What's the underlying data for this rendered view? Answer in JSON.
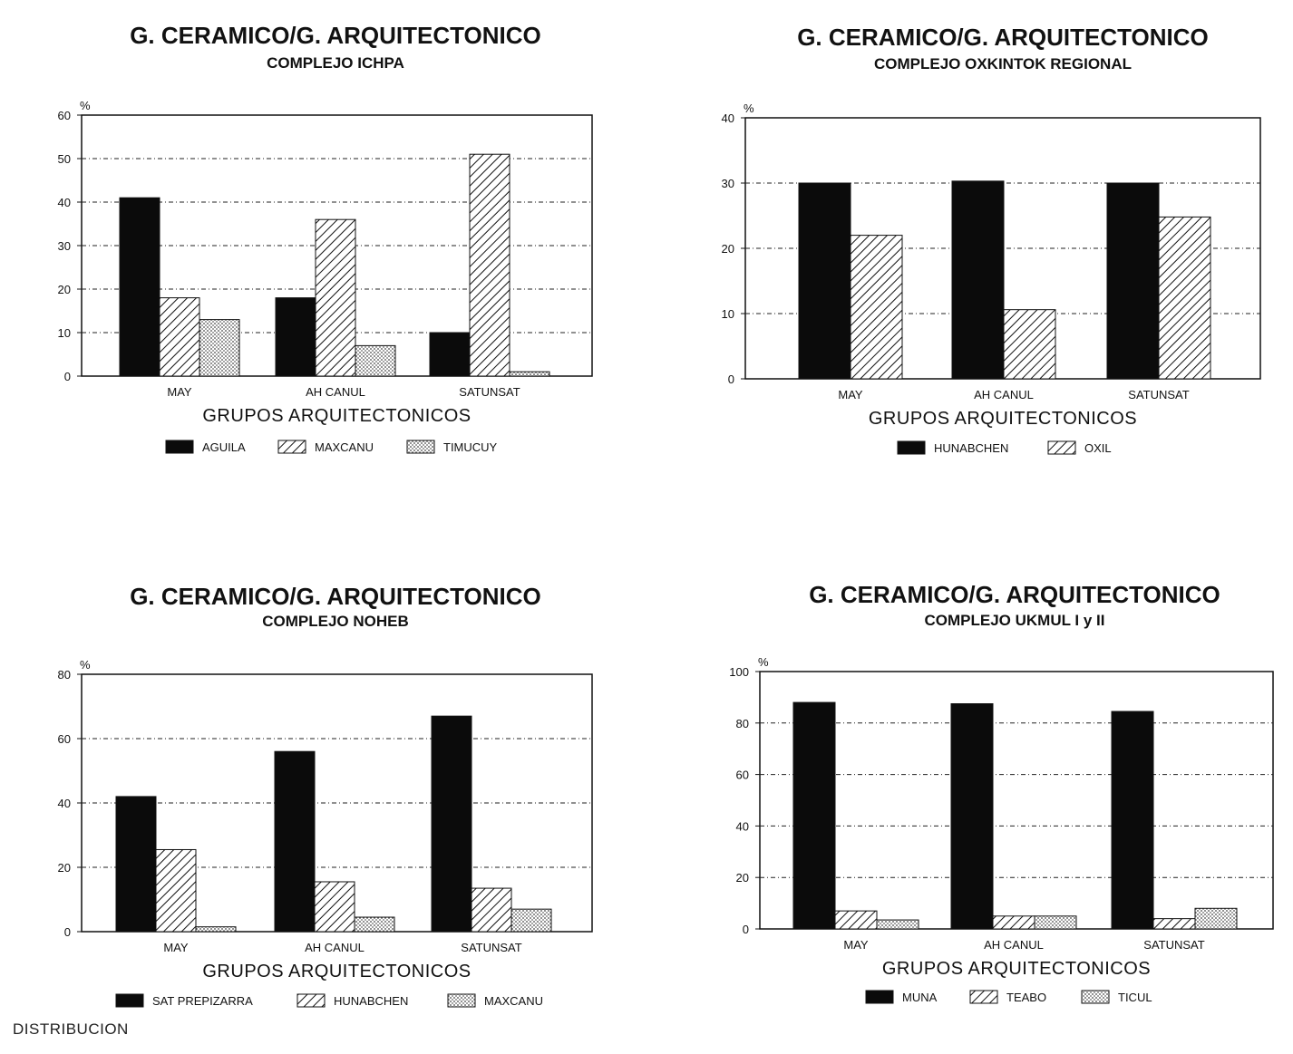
{
  "footer": "DISTRIBUCION",
  "chart_data": [
    {
      "type": "bar",
      "title": "G. CERAMICO/G. ARQUITECTONICO",
      "subtitle": "COMPLEJO ICHPA",
      "ylabel": "%",
      "xlabel": "GRUPOS ARQUITECTONICOS",
      "ylim": [
        0,
        60
      ],
      "yticks": [
        0,
        10,
        20,
        30,
        40,
        50,
        60
      ],
      "grid": true,
      "categories": [
        "MAY",
        "AH CANUL",
        "SATUNSAT"
      ],
      "series": [
        {
          "name": "AGUILA",
          "pattern": "solid",
          "values": [
            41,
            18,
            10
          ]
        },
        {
          "name": "MAXCANU",
          "pattern": "hatch",
          "values": [
            18,
            36,
            51
          ]
        },
        {
          "name": "TIMUCUY",
          "pattern": "dots",
          "values": [
            13,
            7,
            1
          ]
        }
      ]
    },
    {
      "type": "bar",
      "title": "G. CERAMICO/G. ARQUITECTONICO",
      "subtitle": "COMPLEJO OXKINTOK REGIONAL",
      "ylabel": "%",
      "xlabel": "GRUPOS ARQUITECTONICOS",
      "ylim": [
        0,
        40
      ],
      "yticks": [
        0,
        10,
        20,
        30,
        40
      ],
      "grid": true,
      "categories": [
        "MAY",
        "AH CANUL",
        "SATUNSAT"
      ],
      "series": [
        {
          "name": "HUNABCHEN",
          "pattern": "solid",
          "values": [
            30,
            30.3,
            30
          ]
        },
        {
          "name": "OXIL",
          "pattern": "hatch",
          "values": [
            22,
            10.6,
            24.8
          ]
        }
      ]
    },
    {
      "type": "bar",
      "title": "G. CERAMICO/G. ARQUITECTONICO",
      "subtitle": "COMPLEJO NOHEB",
      "ylabel": "%",
      "xlabel": "GRUPOS ARQUITECTONICOS",
      "ylim": [
        0,
        80
      ],
      "yticks": [
        0,
        20,
        40,
        60,
        80
      ],
      "grid": true,
      "categories": [
        "MAY",
        "AH CANUL",
        "SATUNSAT"
      ],
      "series": [
        {
          "name": "SAT PREPIZARRA",
          "pattern": "solid",
          "values": [
            42,
            56,
            67
          ]
        },
        {
          "name": "HUNABCHEN",
          "pattern": "hatch",
          "values": [
            25.5,
            15.5,
            13.5
          ]
        },
        {
          "name": "MAXCANU",
          "pattern": "dots",
          "values": [
            1.5,
            4.5,
            7
          ]
        }
      ]
    },
    {
      "type": "bar",
      "title": "G. CERAMICO/G. ARQUITECTONICO",
      "subtitle": "COMPLEJO UKMUL I y II",
      "ylabel": "%",
      "xlabel": "GRUPOS ARQUITECTONICOS",
      "ylim": [
        0,
        100
      ],
      "yticks": [
        0,
        20,
        40,
        60,
        80,
        100
      ],
      "grid": true,
      "categories": [
        "MAY",
        "AH CANUL",
        "SATUNSAT"
      ],
      "series": [
        {
          "name": "MUNA",
          "pattern": "solid",
          "values": [
            88,
            87.5,
            84.5
          ]
        },
        {
          "name": "TEABO",
          "pattern": "hatch",
          "values": [
            7,
            5,
            4
          ]
        },
        {
          "name": "TICUL",
          "pattern": "dots",
          "values": [
            3.5,
            5,
            8
          ]
        }
      ]
    }
  ]
}
